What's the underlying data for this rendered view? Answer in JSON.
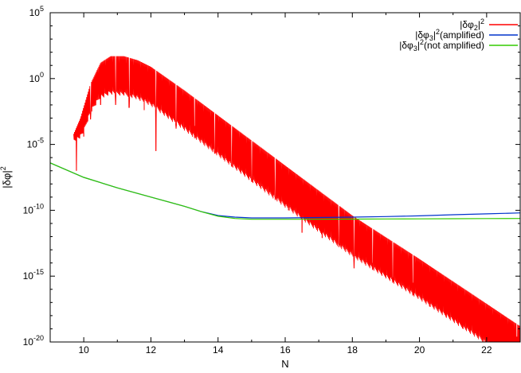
{
  "chart_data": {
    "type": "line",
    "xlabel": "N",
    "ylabel": "|δφ|²",
    "ylabel_parts": {
      "base": "|δφ|",
      "sup": "2"
    },
    "xlim": [
      9,
      23
    ],
    "ylim_exp": [
      -20,
      5
    ],
    "yscale": "log",
    "grid": false,
    "legend_placement": "top-right",
    "x_ticks": [
      10,
      12,
      14,
      16,
      18,
      20,
      22
    ],
    "y_ticks_exp": [
      5,
      0,
      -5,
      -10,
      -15,
      -20
    ],
    "y_tick_base": "10",
    "series": [
      {
        "name": "|δφ₂|²",
        "legend": {
          "a": "|δφ",
          "sub": "2",
          "b": "|",
          "sup": "2",
          "c": ""
        },
        "color": "#ff0000",
        "style": "oscillating",
        "envelope_top_log10": [
          [
            9.7,
            -4.2
          ],
          [
            9.9,
            -3.0
          ],
          [
            10.2,
            -0.4
          ],
          [
            10.5,
            1.2
          ],
          [
            10.8,
            1.7
          ],
          [
            11.2,
            1.7
          ],
          [
            11.6,
            1.4
          ],
          [
            12.0,
            0.9
          ],
          [
            13.0,
            -0.9
          ],
          [
            14.0,
            -2.8
          ],
          [
            16.0,
            -6.6
          ],
          [
            18.0,
            -10.4
          ],
          [
            20.0,
            -13.7
          ],
          [
            22.0,
            -17.1
          ],
          [
            23.0,
            -18.8
          ]
        ],
        "envelope_band_log10": [
          [
            9.7,
            0.6
          ],
          [
            10.0,
            2.0
          ],
          [
            10.6,
            2.8
          ],
          [
            11.0,
            3.0
          ],
          [
            12.0,
            3.0
          ],
          [
            16.0,
            3.2
          ],
          [
            20.0,
            3.1
          ],
          [
            23.0,
            3.1
          ]
        ],
        "deep_dips": [
          [
            9.78,
            -7.0
          ],
          [
            10.0,
            -4.4
          ],
          [
            10.2,
            -3.1
          ],
          [
            10.5,
            -2.0
          ],
          [
            10.95,
            -2.0
          ],
          [
            11.35,
            -2.2
          ],
          [
            11.8,
            -2.4
          ],
          [
            12.15,
            -5.5
          ],
          [
            12.75,
            -3.8
          ],
          [
            13.3,
            -3.6
          ],
          [
            13.9,
            -5.7
          ],
          [
            14.4,
            -6.6
          ],
          [
            15.0,
            -7.8
          ],
          [
            15.7,
            -9.0
          ],
          [
            16.1,
            -10.0
          ],
          [
            16.5,
            -11.7
          ],
          [
            17.1,
            -12.1
          ],
          [
            17.6,
            -12.6
          ],
          [
            18.05,
            -14.4
          ],
          [
            18.6,
            -14.0
          ],
          [
            19.2,
            -15.1
          ],
          [
            19.8,
            -15.5
          ],
          [
            20.3,
            -16.9
          ],
          [
            20.8,
            -17.2
          ],
          [
            21.3,
            -17.4
          ],
          [
            21.9,
            -18.5
          ],
          [
            22.5,
            -18.3
          ],
          [
            22.9,
            -19.6
          ]
        ]
      },
      {
        "name": "|δφ₃|²(amplified)",
        "legend": {
          "a": "|δφ",
          "sub": "3",
          "b": "|",
          "sup": "2",
          "c": "(amplified)"
        },
        "color": "#0033cc",
        "points_log10": [
          [
            9.0,
            -6.4
          ],
          [
            10.0,
            -7.5
          ],
          [
            11.0,
            -8.3
          ],
          [
            12.0,
            -9.0
          ],
          [
            13.0,
            -9.7
          ],
          [
            13.5,
            -10.1
          ],
          [
            14.0,
            -10.4
          ],
          [
            14.5,
            -10.52
          ],
          [
            15.0,
            -10.58
          ],
          [
            16.0,
            -10.58
          ],
          [
            17.0,
            -10.55
          ],
          [
            18.0,
            -10.52
          ],
          [
            19.0,
            -10.48
          ],
          [
            20.0,
            -10.42
          ],
          [
            21.0,
            -10.34
          ],
          [
            22.0,
            -10.27
          ],
          [
            23.0,
            -10.2
          ]
        ]
      },
      {
        "name": "|δφ₃|²(not amplified)",
        "legend": {
          "a": "|δφ",
          "sub": "3",
          "b": "|",
          "sup": "2",
          "c": "(not amplified)"
        },
        "color": "#33cc00",
        "points_log10": [
          [
            9.0,
            -6.4
          ],
          [
            10.0,
            -7.5
          ],
          [
            11.0,
            -8.3
          ],
          [
            12.0,
            -9.0
          ],
          [
            13.0,
            -9.7
          ],
          [
            13.5,
            -10.1
          ],
          [
            14.0,
            -10.45
          ],
          [
            14.5,
            -10.62
          ],
          [
            15.0,
            -10.68
          ],
          [
            16.0,
            -10.68
          ],
          [
            17.0,
            -10.68
          ],
          [
            18.0,
            -10.67
          ],
          [
            19.0,
            -10.66
          ],
          [
            20.0,
            -10.65
          ],
          [
            21.0,
            -10.64
          ],
          [
            22.0,
            -10.63
          ],
          [
            23.0,
            -10.62
          ]
        ]
      }
    ]
  }
}
